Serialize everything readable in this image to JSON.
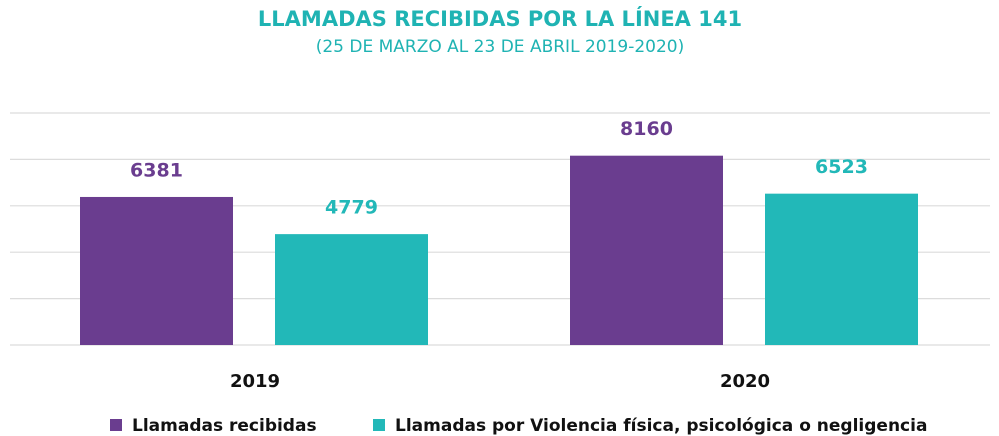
{
  "chart_data": {
    "type": "bar",
    "title": "LLAMADAS RECIBIDAS POR LA LÍNEA 141",
    "subtitle": "(25 DE MARZO AL 23 DE ABRIL 2019-2020)",
    "categories": [
      "2019",
      "2020"
    ],
    "series": [
      {
        "name": "Llamadas recibidas",
        "color": "#6a3d8f",
        "values": [
          6381,
          8160
        ]
      },
      {
        "name": "Llamadas por Violencia física, psicológica o negligencia",
        "color": "#22b8b8",
        "values": [
          4779,
          6523
        ]
      }
    ],
    "ylim": [
      0,
      10000
    ],
    "yticks": [
      0,
      2000,
      4000,
      6000,
      8000,
      10000
    ],
    "grid": true,
    "title_color": "#1fb3b3"
  }
}
